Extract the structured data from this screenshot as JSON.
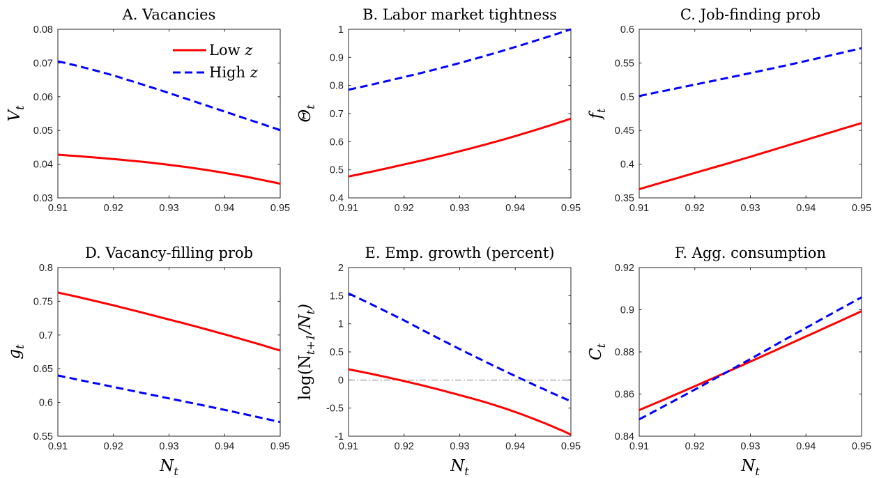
{
  "chart_data": [
    {
      "type": "line",
      "title": "A. Vacancies",
      "ylabel": "V_t",
      "xlabel": "",
      "xlim": [
        0.91,
        0.95
      ],
      "ylim": [
        0.03,
        0.08
      ],
      "xticks": [
        "0.91",
        "0.92",
        "0.93",
        "0.94",
        "0.95"
      ],
      "yticks": [
        "0.03",
        "0.04",
        "0.05",
        "0.06",
        "0.07",
        "0.08"
      ],
      "x": [
        0.91,
        0.92,
        0.93,
        0.94,
        0.95
      ],
      "series": [
        {
          "name": "Low z",
          "style": "solid",
          "color": "#ff0000",
          "values": [
            0.0428,
            0.0415,
            0.0398,
            0.0374,
            0.0342
          ]
        },
        {
          "name": "High z",
          "style": "dashed",
          "color": "#0000ff",
          "values": [
            0.0705,
            0.0663,
            0.0611,
            0.0556,
            0.0501
          ]
        }
      ],
      "legend": {
        "placement": "top-right",
        "entries": [
          {
            "prefix": "Low ",
            "var": "z"
          },
          {
            "prefix": "High ",
            "var": "z"
          }
        ]
      }
    },
    {
      "type": "line",
      "title": "B. Labor market tightness",
      "ylabel": "Θ_t",
      "xlabel": "",
      "xlim": [
        0.91,
        0.95
      ],
      "ylim": [
        0.4,
        1.0
      ],
      "xticks": [
        "0.91",
        "0.92",
        "0.93",
        "0.94",
        "0.95"
      ],
      "yticks": [
        "0.4",
        "0.5",
        "0.6",
        "0.7",
        "0.8",
        "0.9",
        "1"
      ],
      "x": [
        0.91,
        0.92,
        0.93,
        0.94,
        0.95
      ],
      "series": [
        {
          "name": "Low z",
          "style": "solid",
          "color": "#ff0000",
          "values": [
            0.476,
            0.519,
            0.566,
            0.62,
            0.682
          ]
        },
        {
          "name": "High z",
          "style": "dashed",
          "color": "#0000ff",
          "values": [
            0.785,
            0.83,
            0.88,
            0.937,
            1.0
          ]
        }
      ]
    },
    {
      "type": "line",
      "title": "C. Job-finding prob",
      "ylabel": "f_t",
      "xlabel": "",
      "xlim": [
        0.91,
        0.95
      ],
      "ylim": [
        0.35,
        0.6
      ],
      "xticks": [
        "0.91",
        "0.92",
        "0.93",
        "0.94",
        "0.95"
      ],
      "yticks": [
        "0.35",
        "0.4",
        "0.45",
        "0.5",
        "0.55",
        "0.6"
      ],
      "x": [
        0.91,
        0.92,
        0.93,
        0.94,
        0.95
      ],
      "series": [
        {
          "name": "Low z",
          "style": "solid",
          "color": "#ff0000",
          "values": [
            0.363,
            0.387,
            0.411,
            0.436,
            0.461
          ]
        },
        {
          "name": "High z",
          "style": "dashed",
          "color": "#0000ff",
          "values": [
            0.501,
            0.518,
            0.535,
            0.553,
            0.572
          ]
        }
      ]
    },
    {
      "type": "line",
      "title": "D. Vacancy-filling prob",
      "ylabel": "g_t",
      "xlabel": "N_t",
      "xlim": [
        0.91,
        0.95
      ],
      "ylim": [
        0.55,
        0.8
      ],
      "xticks": [
        "0.91",
        "0.92",
        "0.93",
        "0.94",
        "0.95"
      ],
      "yticks": [
        "0.55",
        "0.6",
        "0.65",
        "0.7",
        "0.75",
        "0.8"
      ],
      "x": [
        0.91,
        0.92,
        0.93,
        0.94,
        0.95
      ],
      "series": [
        {
          "name": "Low z",
          "style": "solid",
          "color": "#ff0000",
          "values": [
            0.763,
            0.744,
            0.723,
            0.701,
            0.677
          ]
        },
        {
          "name": "High z",
          "style": "dashed",
          "color": "#0000ff",
          "values": [
            0.64,
            0.623,
            0.606,
            0.589,
            0.571
          ]
        }
      ]
    },
    {
      "type": "line",
      "title": "E. Emp. growth (percent)",
      "ylabel": "log(N_{t+1}/N_t)",
      "xlabel": "N_t",
      "xlim": [
        0.91,
        0.95
      ],
      "ylim": [
        -1,
        2
      ],
      "xticks": [
        "0.91",
        "0.92",
        "0.93",
        "0.94",
        "0.95"
      ],
      "yticks": [
        "-1",
        "-0.5",
        "0",
        "0.5",
        "1",
        "1.5",
        "2"
      ],
      "x": [
        0.91,
        0.92,
        0.93,
        0.94,
        0.95
      ],
      "series": [
        {
          "name": "Low z",
          "style": "solid",
          "color": "#ff0000",
          "values": [
            0.19,
            -0.02,
            -0.27,
            -0.57,
            -0.97
          ]
        },
        {
          "name": "High z",
          "style": "dashed",
          "color": "#0000ff",
          "values": [
            1.54,
            1.06,
            0.55,
            0.07,
            -0.38
          ]
        }
      ],
      "reference_line": {
        "y": 0,
        "style": "dashdot",
        "color": "#808080"
      }
    },
    {
      "type": "line",
      "title": "F. Agg. consumption",
      "ylabel": "C_t",
      "xlabel": "N_t",
      "xlim": [
        0.91,
        0.95
      ],
      "ylim": [
        0.84,
        0.92
      ],
      "xticks": [
        "0.91",
        "0.92",
        "0.93",
        "0.94",
        "0.95"
      ],
      "yticks": [
        "0.84",
        "0.86",
        "0.88",
        "0.9",
        "0.92"
      ],
      "x": [
        0.91,
        0.92,
        0.93,
        0.94,
        0.95
      ],
      "series": [
        {
          "name": "Low z",
          "style": "solid",
          "color": "#ff0000",
          "values": [
            0.8524,
            0.8637,
            0.8754,
            0.8873,
            0.8993
          ]
        },
        {
          "name": "High z",
          "style": "dashed",
          "color": "#0000ff",
          "values": [
            0.848,
            0.8621,
            0.8766,
            0.8914,
            0.9059
          ]
        }
      ]
    }
  ]
}
